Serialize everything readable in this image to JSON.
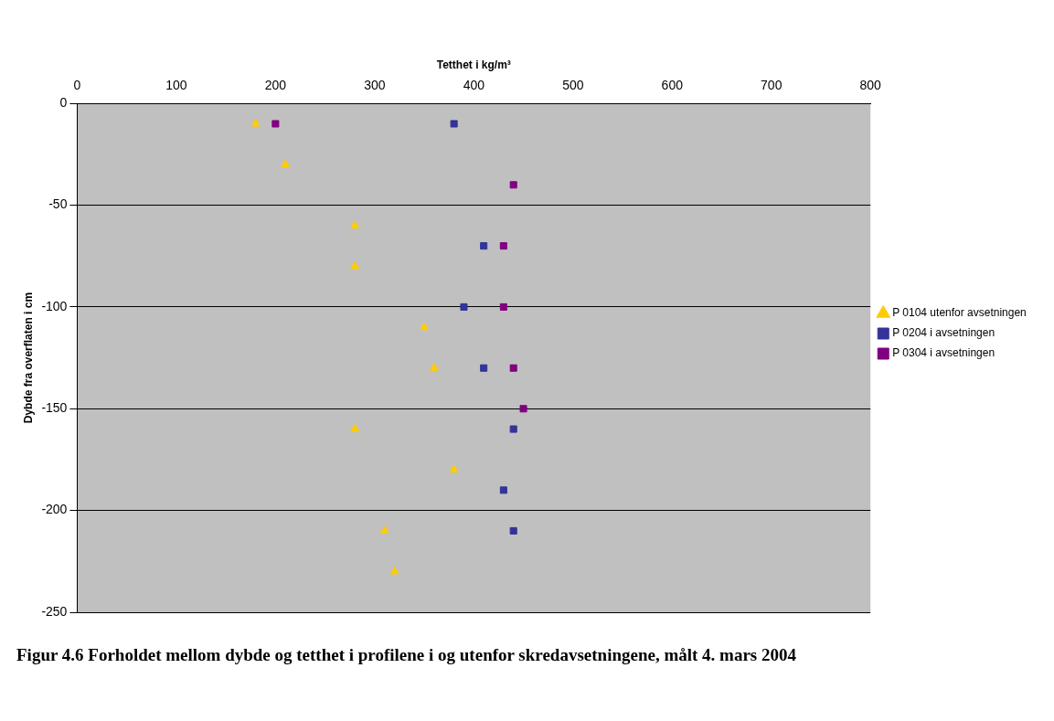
{
  "chart_data": {
    "type": "scatter",
    "xlabel": "Tetthet i kg/m³",
    "ylabel": "Dybde fra overflaten i cm",
    "xlim": [
      0,
      800
    ],
    "xticks": [
      0,
      100,
      200,
      300,
      400,
      500,
      600,
      700,
      800
    ],
    "ylim": [
      -250,
      0
    ],
    "yticks": [
      -250,
      -200,
      -150,
      -100,
      -50,
      0
    ],
    "grid": "y",
    "legend": "right",
    "series": [
      {
        "name": "P 0104 utenfor avsetningen",
        "color": "#ffcc00",
        "marker": "triangle",
        "x": [
          180,
          210,
          280,
          280,
          350,
          360,
          280,
          380,
          310,
          320
        ],
        "values": [
          -10,
          -30,
          -60,
          -80,
          -110,
          -130,
          -160,
          -180,
          -210,
          -230
        ]
      },
      {
        "name": "P 0204 i avsetningen",
        "color": "#333399",
        "marker": "square",
        "x": [
          380,
          410,
          390,
          410,
          440,
          430,
          440
        ],
        "values": [
          -10,
          -70,
          -100,
          -130,
          -160,
          -190,
          -210
        ]
      },
      {
        "name": "P 0304 i avsetningen",
        "color": "#800080",
        "marker": "square",
        "x": [
          200,
          440,
          430,
          430,
          440,
          450
        ],
        "values": [
          -10,
          -40,
          -70,
          -100,
          -130,
          -150
        ]
      }
    ],
    "annotations": [
      "Figur 4.6 Forholdet mellom dybde og tetthet i profilene i og utenfor skredavsetningene, målt 4. mars 2004"
    ]
  }
}
